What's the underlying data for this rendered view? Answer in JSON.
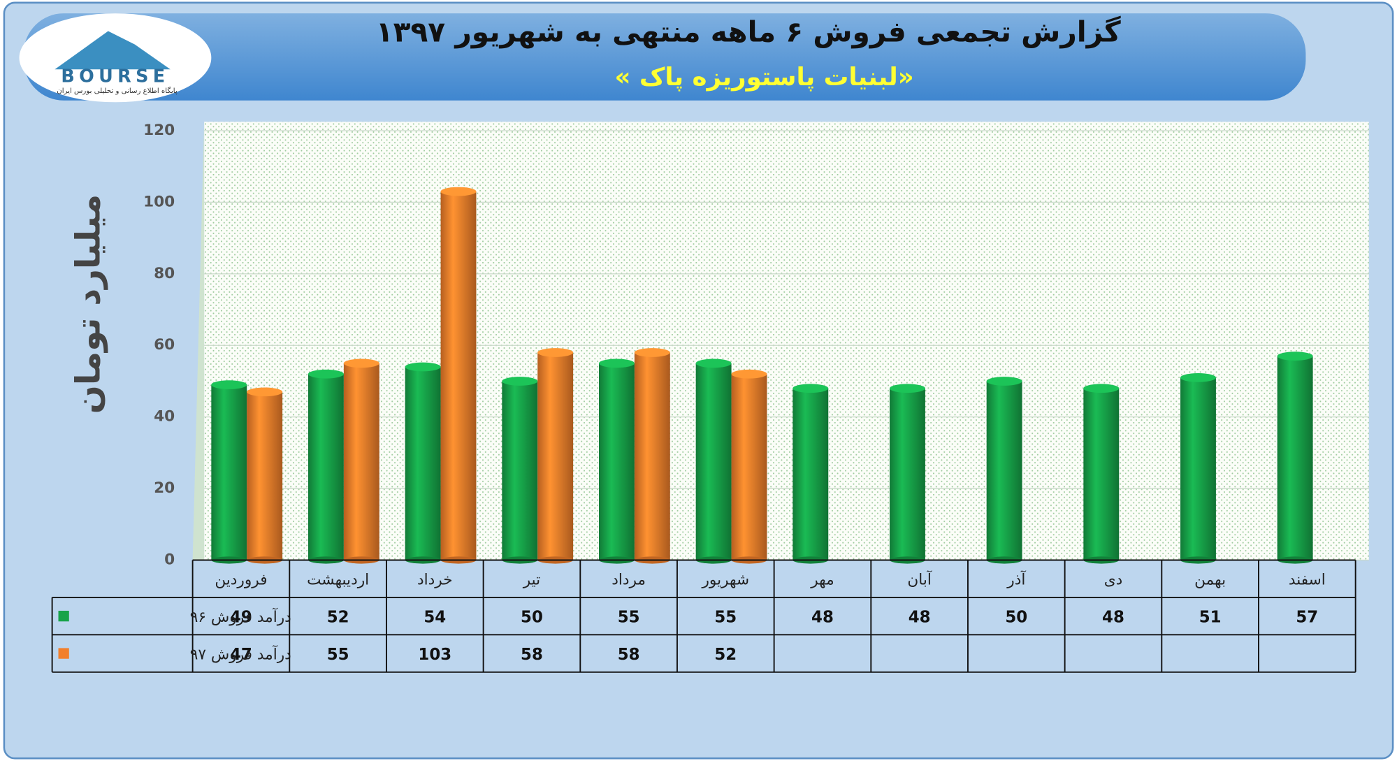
{
  "logo": {
    "name": "BOURSE",
    "tagline": "پایگاه اطلاع رسانی و تحلیلی بورس ایران"
  },
  "chart_data": {
    "type": "bar",
    "title": "گزارش تجمعی فروش ۶ ماهه منتهی به شهریور ۱۳۹۷",
    "subtitle": "«لبنیات پاستوریزه پاک »",
    "y_label": "میلیارد تومان",
    "categories": [
      "فروردین",
      "اردیبهشت",
      "خرداد",
      "تیر",
      "مرداد",
      "شهریور",
      "مهر",
      "آبان",
      "آذر",
      "دی",
      "بهمن",
      "اسفند"
    ],
    "series": [
      {
        "name": "درآمد فروش ۹۶",
        "color": "#17a349",
        "values": [
          49,
          52,
          54,
          50,
          55,
          55,
          48,
          48,
          50,
          48,
          51,
          57
        ]
      },
      {
        "name": "درآمد فروش ۹۷",
        "color": "#f27f2b",
        "values": [
          47,
          55,
          103,
          58,
          58,
          52,
          null,
          null,
          null,
          null,
          null,
          null
        ]
      }
    ],
    "ylim": [
      0,
      120
    ],
    "yticks": [
      0,
      20,
      40,
      60,
      80,
      100,
      120
    ],
    "grid": true
  }
}
